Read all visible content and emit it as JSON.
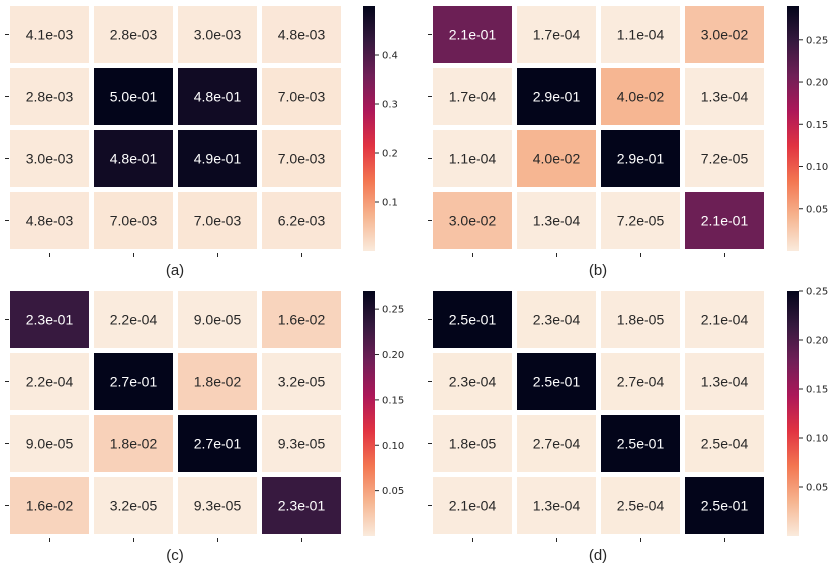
{
  "chart_data": [
    {
      "type": "heatmap",
      "label": "(a)",
      "values": [
        [
          0.0041,
          0.0028,
          0.003,
          0.0048
        ],
        [
          0.0028,
          0.5,
          0.48,
          0.007
        ],
        [
          0.003,
          0.48,
          0.49,
          0.007
        ],
        [
          0.0048,
          0.007,
          0.007,
          0.0062
        ]
      ],
      "cell_labels": [
        [
          "4.1e-03",
          "2.8e-03",
          "3.0e-03",
          "4.8e-03"
        ],
        [
          "2.8e-03",
          "5.0e-01",
          "4.8e-01",
          "7.0e-03"
        ],
        [
          "3.0e-03",
          "4.8e-01",
          "4.9e-01",
          "7.0e-03"
        ],
        [
          "4.8e-03",
          "7.0e-03",
          "7.0e-03",
          "6.2e-03"
        ]
      ],
      "colorbar": {
        "min": 0,
        "max": 0.5,
        "ticks": [
          0.1,
          0.2,
          0.3,
          0.4
        ],
        "tick_labels": [
          "0.1",
          "0.2",
          "0.3",
          "0.4"
        ]
      }
    },
    {
      "type": "heatmap",
      "label": "(b)",
      "values": [
        [
          0.21,
          0.00017,
          0.00011,
          0.03
        ],
        [
          0.00017,
          0.29,
          0.04,
          0.00013
        ],
        [
          0.00011,
          0.04,
          0.29,
          7.2e-05
        ],
        [
          0.03,
          0.00013,
          7.2e-05,
          0.21
        ]
      ],
      "cell_labels": [
        [
          "2.1e-01",
          "1.7e-04",
          "1.1e-04",
          "3.0e-02"
        ],
        [
          "1.7e-04",
          "2.9e-01",
          "4.0e-02",
          "1.3e-04"
        ],
        [
          "1.1e-04",
          "4.0e-02",
          "2.9e-01",
          "7.2e-05"
        ],
        [
          "3.0e-02",
          "1.3e-04",
          "7.2e-05",
          "2.1e-01"
        ]
      ],
      "colorbar": {
        "min": 0,
        "max": 0.29,
        "ticks": [
          0.05,
          0.1,
          0.15,
          0.2,
          0.25
        ],
        "tick_labels": [
          "0.05",
          "0.10",
          "0.15",
          "0.20",
          "0.25"
        ]
      }
    },
    {
      "type": "heatmap",
      "label": "(c)",
      "values": [
        [
          0.23,
          0.00022,
          9e-05,
          0.016
        ],
        [
          0.00022,
          0.27,
          0.018,
          3.2e-05
        ],
        [
          9e-05,
          0.018,
          0.27,
          9.3e-05
        ],
        [
          0.016,
          3.2e-05,
          9.3e-05,
          0.23
        ]
      ],
      "cell_labels": [
        [
          "2.3e-01",
          "2.2e-04",
          "9.0e-05",
          "1.6e-02"
        ],
        [
          "2.2e-04",
          "2.7e-01",
          "1.8e-02",
          "3.2e-05"
        ],
        [
          "9.0e-05",
          "1.8e-02",
          "2.7e-01",
          "9.3e-05"
        ],
        [
          "1.6e-02",
          "3.2e-05",
          "9.3e-05",
          "2.3e-01"
        ]
      ],
      "colorbar": {
        "min": 0,
        "max": 0.27,
        "ticks": [
          0.05,
          0.1,
          0.15,
          0.2,
          0.25
        ],
        "tick_labels": [
          "0.05",
          "0.10",
          "0.15",
          "0.20",
          "0.25"
        ]
      }
    },
    {
      "type": "heatmap",
      "label": "(d)",
      "values": [
        [
          0.25,
          0.00023,
          1.8e-05,
          0.00021
        ],
        [
          0.00023,
          0.25,
          0.00027,
          0.00013
        ],
        [
          1.8e-05,
          0.00027,
          0.25,
          0.00025
        ],
        [
          0.00021,
          0.00013,
          0.00025,
          0.25
        ]
      ],
      "cell_labels": [
        [
          "2.5e-01",
          "2.3e-04",
          "1.8e-05",
          "2.1e-04"
        ],
        [
          "2.3e-04",
          "2.5e-01",
          "2.7e-04",
          "1.3e-04"
        ],
        [
          "1.8e-05",
          "2.7e-04",
          "2.5e-01",
          "2.5e-04"
        ],
        [
          "2.1e-04",
          "1.3e-04",
          "2.5e-04",
          "2.5e-01"
        ]
      ],
      "colorbar": {
        "min": 0,
        "max": 0.25,
        "ticks": [
          0.05,
          0.1,
          0.15,
          0.2,
          0.25
        ],
        "tick_labels": [
          "0.05",
          "0.10",
          "0.15",
          "0.20",
          "0.25"
        ]
      }
    }
  ],
  "colormap": [
    "#faebdd",
    "#f6b48f",
    "#f37651",
    "#e13342",
    "#ad1759",
    "#701f57",
    "#35193e",
    "#03051a"
  ]
}
